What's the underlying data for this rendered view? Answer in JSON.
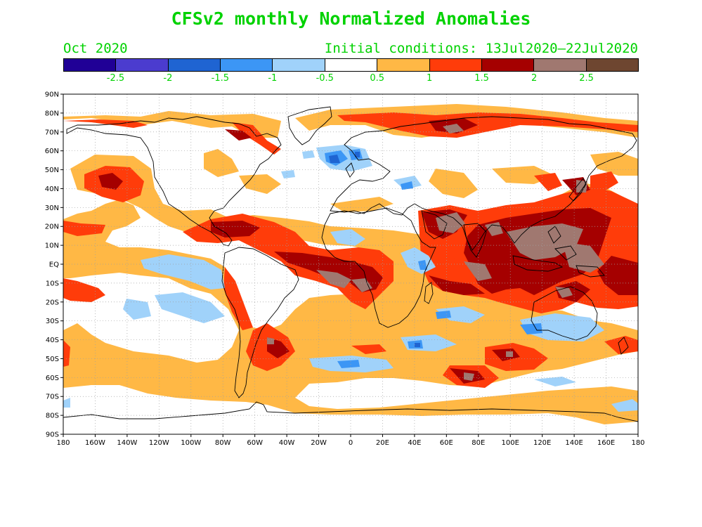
{
  "title": "CFSv2 monthly Normalized Anomalies",
  "target_month": "Oct 2020",
  "initial_conditions": "Initial conditions: 13Jul2020–22Jul2020",
  "colorbar": {
    "colors": [
      "#200096",
      "#4b3ccf",
      "#1f64d2",
      "#3c96f5",
      "#a0d2fa",
      "#ffffff",
      "#ffb845",
      "#ff3c0a",
      "#a50000",
      "#a07870",
      "#6e4630"
    ],
    "labels": [
      "-2.5",
      "-2",
      "-1.5",
      "-1",
      "-0.5",
      "0.5",
      "1",
      "1.5",
      "2",
      "2.5"
    ]
  },
  "axes": {
    "lat_labels": [
      "90N",
      "80N",
      "70N",
      "60N",
      "50N",
      "40N",
      "30N",
      "20N",
      "10N",
      "EQ",
      "10S",
      "20S",
      "30S",
      "40S",
      "50S",
      "60S",
      "70S",
      "80S",
      "90S"
    ],
    "lon_labels": [
      "180",
      "160W",
      "140W",
      "120W",
      "100W",
      "80W",
      "60W",
      "40W",
      "20W",
      "0",
      "20E",
      "40E",
      "60E",
      "80E",
      "100E",
      "120E",
      "140E",
      "160E",
      "180"
    ]
  }
}
